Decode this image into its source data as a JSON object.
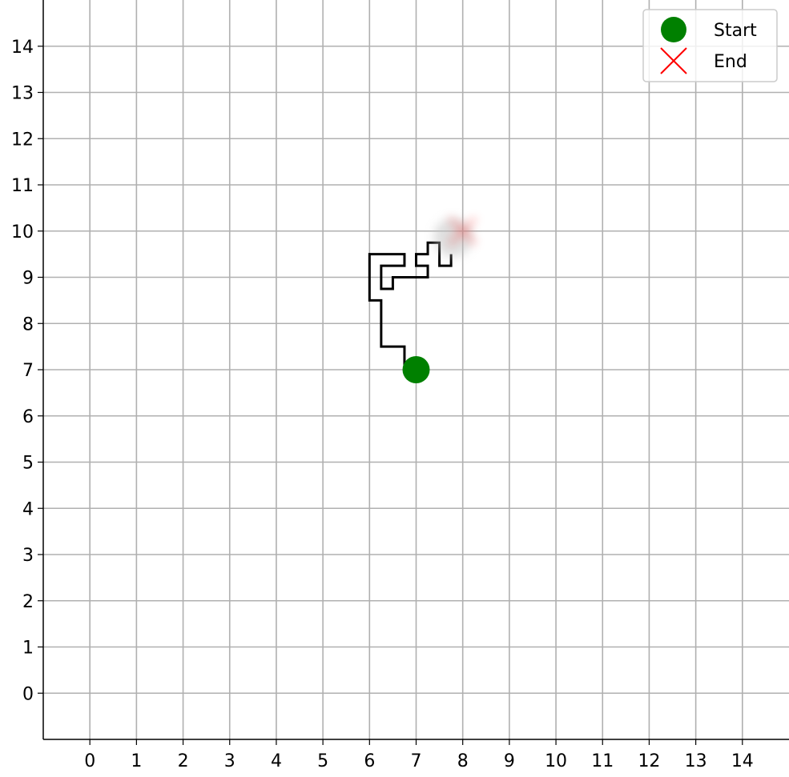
{
  "chart_data": {
    "type": "line",
    "title": "",
    "xlabel": "",
    "ylabel": "",
    "xlim": [
      -1,
      15
    ],
    "ylim": [
      -1,
      15
    ],
    "xticks": [
      "0",
      "1",
      "2",
      "3",
      "4",
      "5",
      "6",
      "7",
      "8",
      "9",
      "10",
      "11",
      "12",
      "13",
      "14"
    ],
    "yticks": [
      "0",
      "1",
      "2",
      "3",
      "4",
      "5",
      "6",
      "7",
      "8",
      "9",
      "10",
      "11",
      "12",
      "13",
      "14"
    ],
    "grid": true,
    "legend": {
      "placement": "top-right",
      "entries": [
        {
          "label": "Start",
          "marker": "circle",
          "color": "#008000"
        },
        {
          "label": "End",
          "marker": "x",
          "color": "#ff0000"
        }
      ]
    },
    "path": {
      "color": "#000000",
      "x": [
        6.75,
        6.75,
        6.25,
        6.25,
        6.0,
        6.0,
        6.75,
        6.75,
        6.25,
        6.25,
        6.5,
        6.5,
        7.25,
        7.25,
        7.0,
        7.0,
        7.25,
        7.25,
        7.5,
        7.5,
        7.75,
        7.75
      ],
      "y": [
        7.0,
        7.5,
        7.5,
        8.5,
        8.5,
        9.5,
        9.5,
        9.25,
        9.25,
        8.75,
        8.75,
        9.0,
        9.0,
        9.25,
        9.25,
        9.5,
        9.5,
        9.75,
        9.75,
        9.25,
        9.25,
        9.5
      ]
    },
    "start": {
      "x": 7,
      "y": 7
    },
    "end": {
      "x": 8,
      "y": 10
    }
  }
}
